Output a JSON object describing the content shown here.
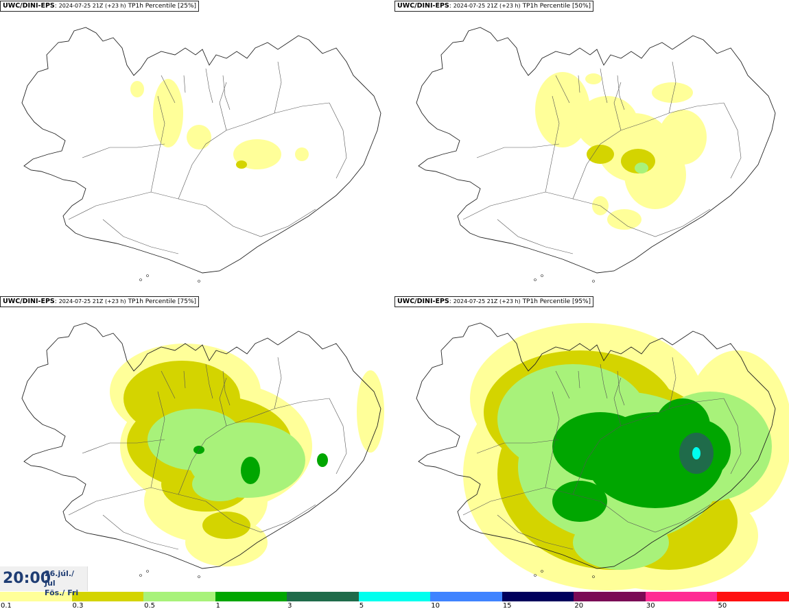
{
  "panels": [
    {
      "model": "UWC/DINI-EPS",
      "sep": ":",
      "run": "2024-07-25 21Z (+23 h)",
      "field": "TP1h Percentile [25%]",
      "level": 1
    },
    {
      "model": "UWC/DINI-EPS",
      "sep": ":",
      "run": "2024-07-25 21Z (+23 h)",
      "field": "TP1h Percentile [50%]",
      "level": 2
    },
    {
      "model": "UWC/DINI-EPS",
      "sep": ":",
      "run": "2024-07-25 21Z (+23 h)",
      "field": "TP1h Percentile [75%]",
      "level": 3
    },
    {
      "model": "UWC/DINI-EPS",
      "sep": ":",
      "run": "2024-07-25 21Z (+23 h)",
      "field": "TP1h Percentile [95%]",
      "level": 4
    }
  ],
  "time": {
    "clock": "20:00",
    "date_line1": "26.júl./ Jul",
    "date_line2": "Fös./ Fri"
  },
  "legend": {
    "colors": [
      "#ffff99",
      "#d4d400",
      "#a8f27a",
      "#00a600",
      "#1f6b4a",
      "#00ffee",
      "#3f83ff",
      "#00005c",
      "#7a0a55",
      "#ff2b93",
      "#ff1010"
    ],
    "labels": [
      "0.1",
      "0.3",
      "0.5",
      "1",
      "3",
      "5",
      "10",
      "15",
      "20",
      "30",
      "50"
    ]
  }
}
